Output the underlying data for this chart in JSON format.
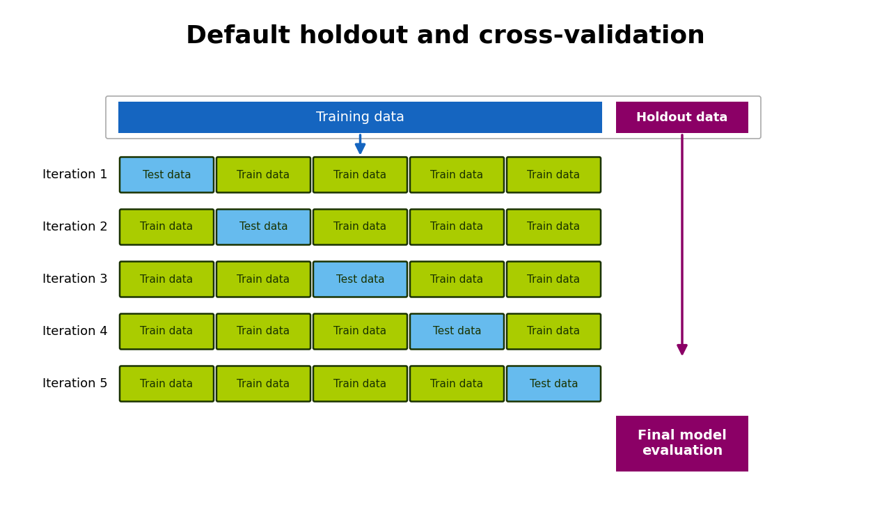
{
  "title": "Default holdout and cross-validation",
  "title_fontsize": 26,
  "title_fontweight": "bold",
  "bg_color": "#ffffff",
  "training_data_label": "Training data",
  "training_data_color": "#1565c0",
  "holdout_label": "Holdout data",
  "holdout_color": "#8b0066",
  "final_model_label": "Final model\nevaluation",
  "final_model_color": "#8b0066",
  "train_color": "#aacc00",
  "test_color": "#66bbee",
  "cell_text_color": "#1a3300",
  "outer_box_edge_color": "#aaaaaa",
  "iterations": [
    "Iteration 1",
    "Iteration 2",
    "Iteration 3",
    "Iteration 4",
    "Iteration 5"
  ],
  "test_fold": [
    0,
    1,
    2,
    3,
    4
  ],
  "cell_label_train": "Train data",
  "cell_label_test": "Test data",
  "n_folds": 5,
  "iter_label_fontsize": 13,
  "cell_fontsize": 11,
  "bar_fontsize": 14,
  "holdout_fontsize": 13,
  "final_fontsize": 14
}
